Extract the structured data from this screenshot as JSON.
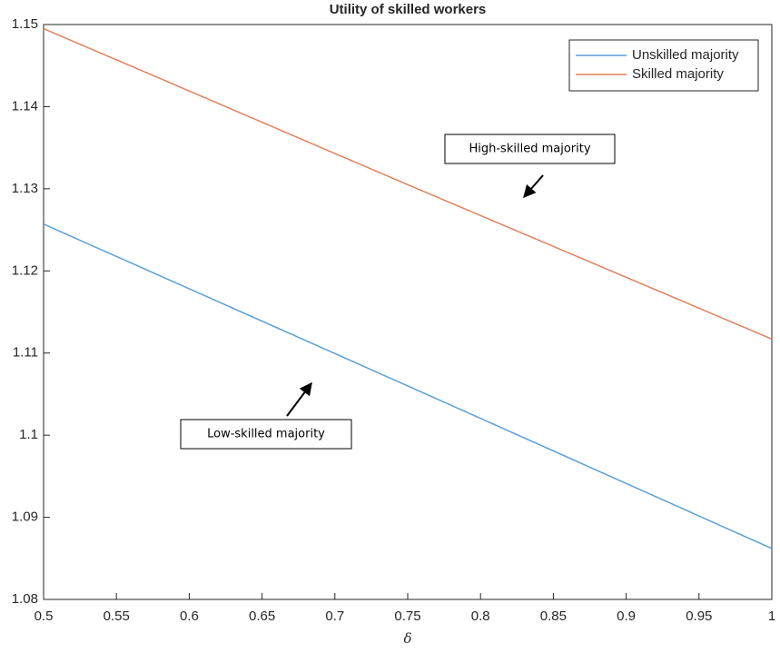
{
  "chart_data": {
    "type": "line",
    "title": "Utility of skilled workers",
    "xlabel": "δ",
    "x": [
      0.5,
      0.75,
      1
    ],
    "series": [
      {
        "name": "Unskilled majority",
        "color": "#5b9fd6",
        "values": [
          1.1257,
          1.106,
          1.0862
        ]
      },
      {
        "name": "Skilled majority",
        "color": "#e0805f",
        "values": [
          1.1495,
          1.1305,
          1.1117
        ]
      }
    ],
    "xlim": [
      0.5,
      1
    ],
    "xticks": [
      0.5,
      0.55,
      0.6,
      0.65,
      0.7,
      0.75,
      0.8,
      0.85,
      0.9,
      0.95,
      1
    ],
    "ylim": [
      1.08,
      1.15
    ],
    "yticks": [
      1.08,
      1.09,
      1.1,
      1.11,
      1.12,
      1.13,
      1.14,
      1.15
    ],
    "grid": false,
    "legend": "upper right",
    "annotations": [
      "High-skilled majority",
      "Low-skilled majority"
    ]
  }
}
